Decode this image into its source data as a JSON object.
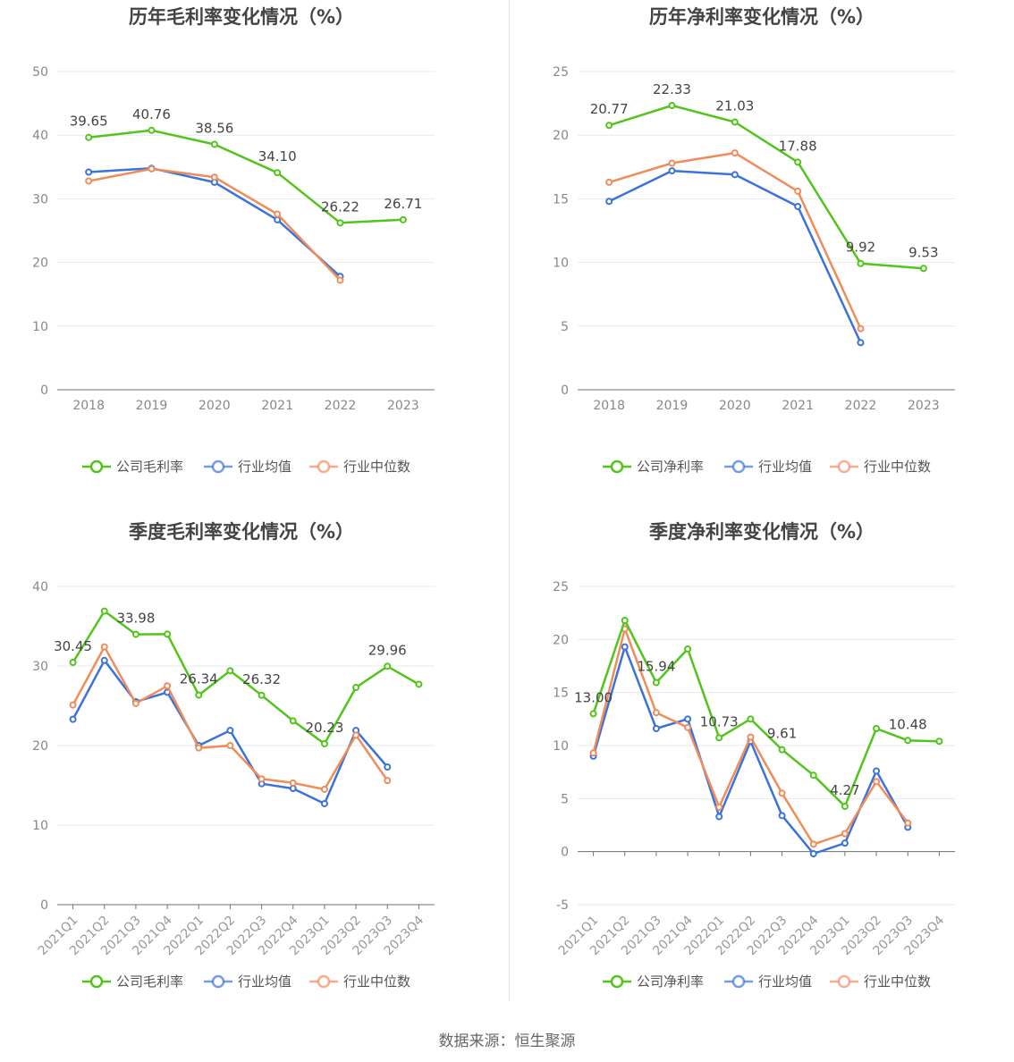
{
  "source": "数据来源：恒生聚源",
  "colors": {
    "company": "#52c41a",
    "avg": "#3b73d9",
    "median": "#f08c5a"
  },
  "legend_icons": [
    "company-circle-icon",
    "avg-circle-icon",
    "median-circle-icon"
  ],
  "chart_data": [
    {
      "type": "line",
      "title": "历年毛利率变化情况（%）",
      "categories": [
        "2018",
        "2019",
        "2020",
        "2021",
        "2022",
        "2023"
      ],
      "ylim": [
        0,
        50
      ],
      "yticks": [
        0,
        10,
        20,
        30,
        40,
        50
      ],
      "grid": true,
      "legend_position": "bottom",
      "series": [
        {
          "name": "公司毛利率",
          "values": [
            39.65,
            40.76,
            38.56,
            34.1,
            26.22,
            26.71
          ],
          "labels": [
            "39.65",
            "40.76",
            "38.56",
            "34.10",
            "26.22",
            "26.71"
          ]
        },
        {
          "name": "行业均值",
          "values": [
            34.2,
            34.8,
            32.6,
            26.7,
            17.8,
            null
          ]
        },
        {
          "name": "行业中位数",
          "values": [
            32.8,
            34.7,
            33.4,
            27.6,
            17.2,
            null
          ]
        }
      ]
    },
    {
      "type": "line",
      "title": "历年净利率变化情况（%）",
      "categories": [
        "2018",
        "2019",
        "2020",
        "2021",
        "2022",
        "2023"
      ],
      "ylim": [
        0,
        25
      ],
      "yticks": [
        0,
        5,
        10,
        15,
        20,
        25
      ],
      "grid": true,
      "legend_position": "bottom",
      "series": [
        {
          "name": "公司净利率",
          "values": [
            20.77,
            22.33,
            21.03,
            17.88,
            9.92,
            9.53
          ],
          "labels": [
            "20.77",
            "22.33",
            "21.03",
            "17.88",
            "9.92",
            "9.53"
          ]
        },
        {
          "name": "行业均值",
          "values": [
            14.8,
            17.2,
            16.9,
            14.4,
            3.7,
            null
          ]
        },
        {
          "name": "行业中位数",
          "values": [
            16.3,
            17.8,
            18.6,
            15.6,
            4.8,
            null
          ]
        }
      ]
    },
    {
      "type": "line",
      "title": "季度毛利率变化情况（%）",
      "categories": [
        "2021Q1",
        "2021Q2",
        "2021Q3",
        "2021Q4",
        "2022Q1",
        "2022Q2",
        "2022Q3",
        "2022Q4",
        "2023Q1",
        "2023Q2",
        "2023Q3",
        "2023Q4"
      ],
      "ylim": [
        0,
        40
      ],
      "yticks": [
        0,
        10,
        20,
        30,
        40
      ],
      "grid": true,
      "legend_position": "bottom",
      "series": [
        {
          "name": "公司毛利率",
          "values": [
            30.45,
            36.9,
            33.98,
            34.0,
            26.34,
            29.4,
            26.32,
            23.1,
            20.23,
            27.3,
            29.96,
            27.7
          ],
          "labels": [
            "30.45",
            "",
            "33.98",
            "",
            "26.34",
            "",
            "26.32",
            "",
            "20.23",
            "",
            "29.96",
            ""
          ]
        },
        {
          "name": "行业均值",
          "values": [
            23.3,
            30.7,
            25.5,
            26.7,
            20.0,
            21.9,
            15.2,
            14.6,
            12.7,
            21.9,
            17.3,
            null
          ]
        },
        {
          "name": "行业中位数",
          "values": [
            25.1,
            32.4,
            25.3,
            27.5,
            19.7,
            20.0,
            15.8,
            15.3,
            14.5,
            21.3,
            15.6,
            null
          ]
        }
      ]
    },
    {
      "type": "line",
      "title": "季度净利率变化情况（%）",
      "categories": [
        "2021Q1",
        "2021Q2",
        "2021Q3",
        "2021Q4",
        "2022Q1",
        "2022Q2",
        "2022Q3",
        "2022Q4",
        "2023Q1",
        "2023Q2",
        "2023Q3",
        "2023Q4"
      ],
      "ylim": [
        -5,
        25
      ],
      "yticks": [
        -5,
        0,
        5,
        10,
        15,
        20,
        25
      ],
      "grid": true,
      "legend_position": "bottom",
      "series": [
        {
          "name": "公司净利率",
          "values": [
            13.0,
            21.8,
            15.94,
            19.1,
            10.73,
            12.5,
            9.61,
            7.2,
            4.27,
            11.6,
            10.48,
            10.4
          ],
          "labels": [
            "13.00",
            "",
            "15.94",
            "",
            "10.73",
            "",
            "9.61",
            "",
            "4.27",
            "",
            "10.48",
            ""
          ]
        },
        {
          "name": "行业均值",
          "values": [
            9.0,
            19.3,
            11.6,
            12.5,
            3.3,
            10.4,
            3.4,
            -0.2,
            0.8,
            7.6,
            2.3,
            null
          ]
        },
        {
          "name": "行业中位数",
          "values": [
            9.3,
            21.0,
            13.1,
            11.7,
            4.2,
            10.8,
            5.5,
            0.7,
            1.7,
            6.6,
            2.7,
            null
          ]
        }
      ]
    }
  ]
}
